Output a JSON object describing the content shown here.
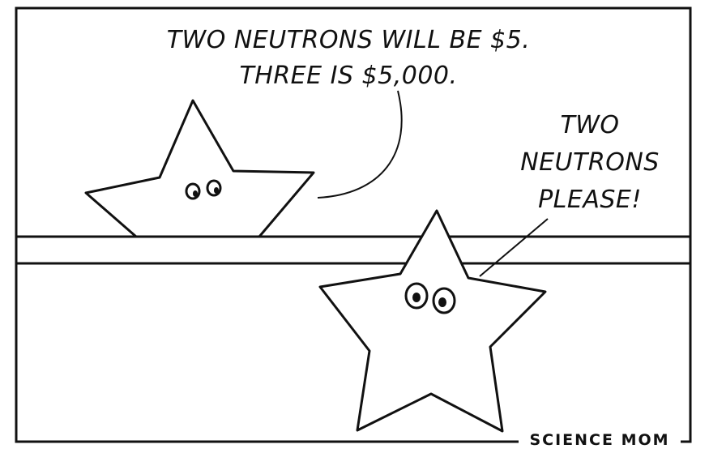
{
  "comic": {
    "speech_bubble_top": {
      "line1": "TWO NEUTRONS WILL BE $5.",
      "line2": "THREE IS $5,000."
    },
    "speech_bubble_right": {
      "line1": "TWO",
      "line2": "NEUTRONS",
      "line3": "PLEASE!"
    },
    "credit": "SCIENCE MOM"
  },
  "colors": {
    "ink": "#111111",
    "paper": "#ffffff"
  }
}
